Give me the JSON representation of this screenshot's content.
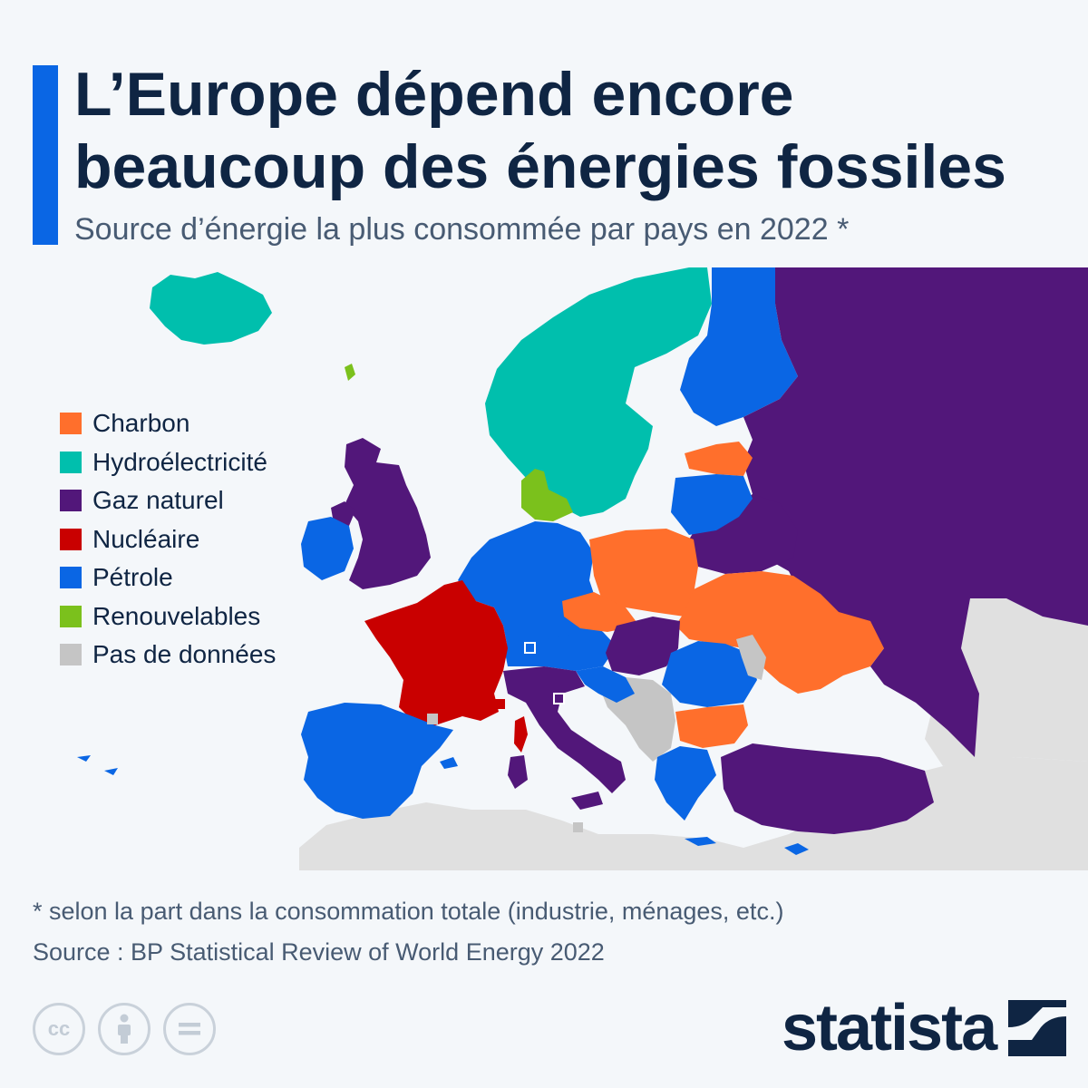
{
  "title": {
    "line1": "L’Europe dépend encore",
    "line2": "beaucoup des énergies fossiles"
  },
  "subtitle": "Source d’énergie la plus consommée par pays en 2022 *",
  "legend": [
    {
      "label": "Charbon",
      "color": "#ff6f2c"
    },
    {
      "label": "Hydroélectricité",
      "color": "#00bfad"
    },
    {
      "label": "Gaz naturel",
      "color": "#52177a"
    },
    {
      "label": "Nucléaire",
      "color": "#c90000"
    },
    {
      "label": "Pétrole",
      "color": "#0a66e4"
    },
    {
      "label": "Renouvelables",
      "color": "#7bc11c"
    },
    {
      "label": "Pas de données",
      "color": "#c5c5c5"
    }
  ],
  "colors": {
    "background": "#f4f7fa",
    "accent": "#0a66e4",
    "title": "#0f2543",
    "muted_land": "#e0e0e0"
  },
  "footnote": "* selon la part dans la consommation totale (industrie, ménages, etc.)",
  "source": "Source : BP Statistical Review of World Energy 2022",
  "license_icons": [
    "cc-icon",
    "by-icon",
    "nd-icon"
  ],
  "logo": {
    "text": "statista",
    "icon": "statista-logo-icon"
  }
}
